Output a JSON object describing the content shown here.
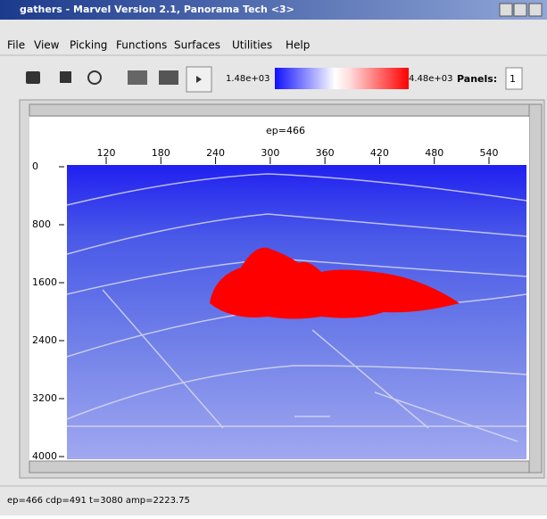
{
  "window": {
    "title": "gathers - Marvel Version 2.1, Panorama Tech <3>"
  },
  "menu": [
    "File",
    "View",
    "Picking",
    "Functions",
    "Surfaces",
    "Utilities",
    "Help"
  ],
  "toolbar": {
    "color_min": "1.48e+03",
    "color_max": "4.48e+03",
    "panels_label": "Panels:",
    "panels_value": "1"
  },
  "plot": {
    "title": "ep=466",
    "x_ticks": [
      120,
      180,
      240,
      300,
      360,
      420,
      480,
      540
    ],
    "y_ticks": [
      0,
      800,
      1600,
      2400,
      3200,
      4000
    ]
  },
  "status": "ep=466 cdp=491 t=3080 amp=2223.75"
}
